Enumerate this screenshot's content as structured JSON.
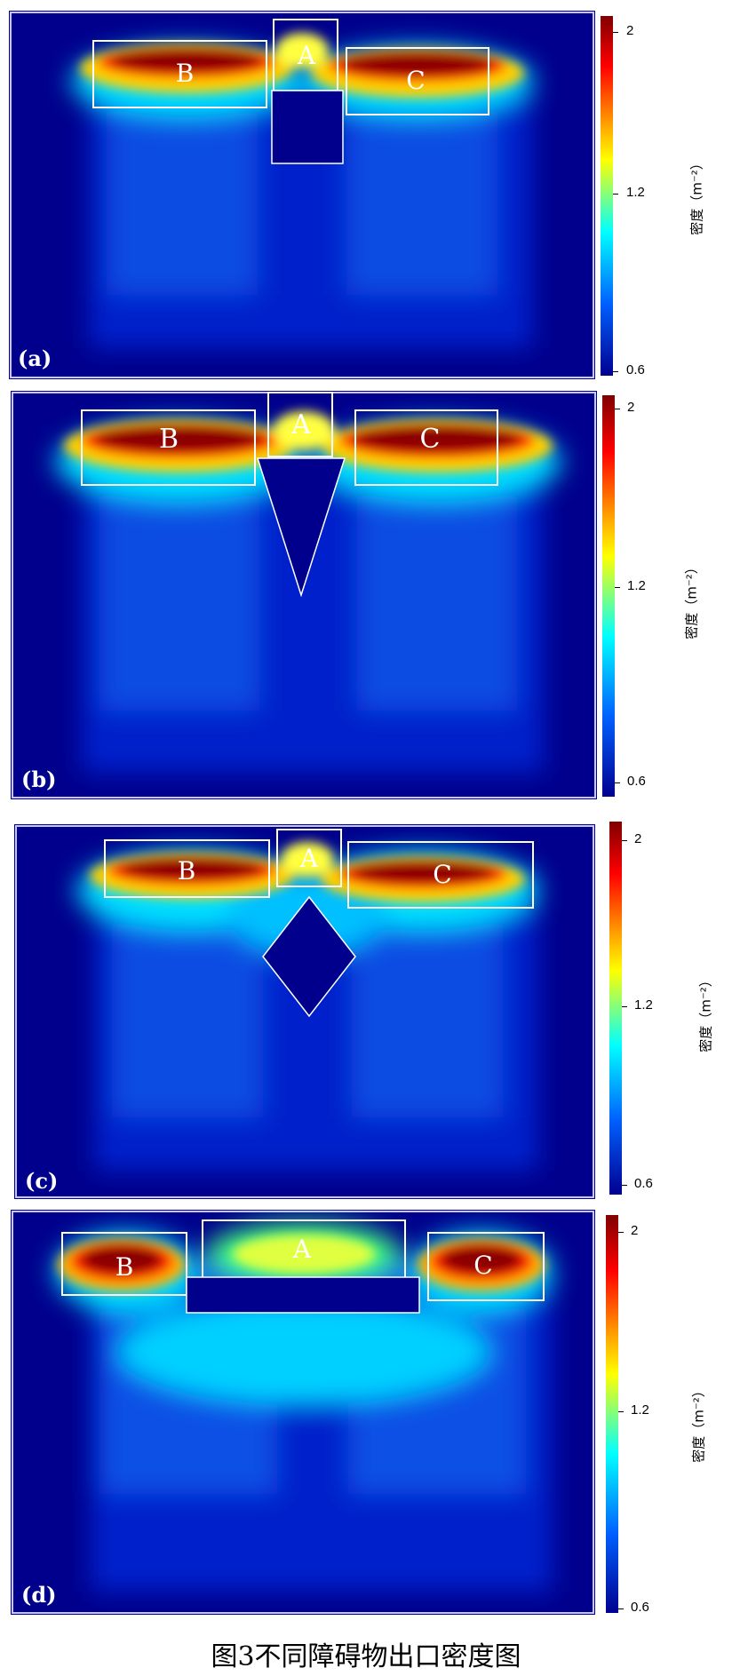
{
  "figure": {
    "caption": "图3不同障碍物出口密度图",
    "colorbar": {
      "title": "密度（m⁻²）",
      "ticks": [
        "2",
        "1.2",
        "0.6"
      ],
      "range": [
        0.6,
        2
      ]
    },
    "panels": [
      {
        "label": "(a)",
        "zones": [
          "A",
          "B",
          "C"
        ],
        "obstacle": "rectangle"
      },
      {
        "label": "(b)",
        "zones": [
          "A",
          "B",
          "C"
        ],
        "obstacle": "triangle"
      },
      {
        "label": "(c)",
        "zones": [
          "A",
          "B",
          "C"
        ],
        "obstacle": "diamond"
      },
      {
        "label": "(d)",
        "zones": [
          "A",
          "B",
          "C"
        ],
        "obstacle": "bar"
      }
    ]
  },
  "colors": {
    "background": "#00008c",
    "hot": "#8b0000",
    "frame": "#ffffff"
  }
}
